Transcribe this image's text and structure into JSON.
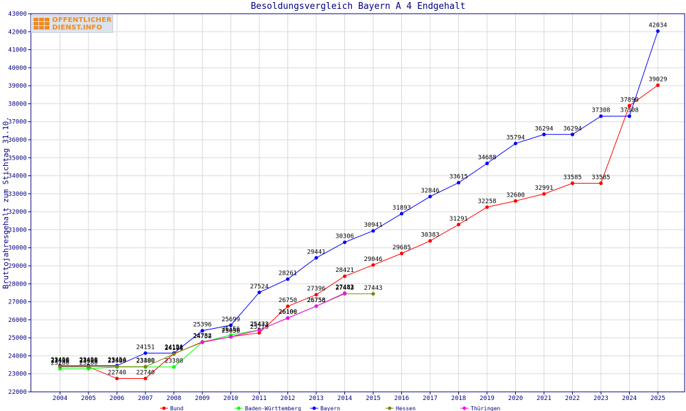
{
  "logo": {
    "line1": "OFFENTLICHER",
    "line2": "DIENST.INFO"
  },
  "colors": {
    "axis": "#000080",
    "grid": "#d9d9d9",
    "background": "#ffffff"
  },
  "chart_data": {
    "type": "line",
    "title": "Besoldungsvergleich Bayern A 4 Endgehalt",
    "xlabel": "",
    "ylabel": "Bruttojahresgehalt zum Stichtag 31.10.",
    "ylim": [
      22000,
      43000
    ],
    "yticks": [
      22000,
      23000,
      24000,
      25000,
      26000,
      27000,
      28000,
      29000,
      30000,
      31000,
      32000,
      33000,
      34000,
      35000,
      36000,
      37000,
      38000,
      39000,
      40000,
      41000,
      42000,
      43000
    ],
    "x": [
      2004,
      2005,
      2006,
      2007,
      2008,
      2009,
      2010,
      2011,
      2012,
      2013,
      2014,
      2015,
      2016,
      2017,
      2018,
      2019,
      2020,
      2021,
      2022,
      2023,
      2024,
      2025
    ],
    "grid": true,
    "legend_position": "bottom",
    "series": [
      {
        "name": "Bund",
        "color": "#ff0000",
        "values": [
          23386,
          23386,
          22740,
          22740,
          24126,
          24752,
          25056,
          25279,
          26750,
          27396,
          28421,
          29046,
          29685,
          30383,
          31291,
          32258,
          32600,
          32991,
          33585,
          33585,
          37890,
          39029
        ]
      },
      {
        "name": "Baden-Württemberg",
        "color": "#00ff00",
        "values": [
          23280,
          23280,
          23380,
          23380,
          23380,
          24752,
          25156,
          25433,
          26100,
          26758,
          27483,
          null,
          null,
          null,
          null,
          null,
          null,
          null,
          null,
          null,
          null,
          null
        ]
      },
      {
        "name": "Bayern",
        "color": "#0000ff",
        "values": [
          23450,
          23450,
          23454,
          24151,
          24151,
          25396,
          25699,
          27524,
          28261,
          29441,
          30306,
          30941,
          31893,
          32846,
          33615,
          34688,
          35794,
          36294,
          36294,
          37308,
          37308,
          42034
        ]
      },
      {
        "name": "Hessen",
        "color": "#808000",
        "values": [
          23400,
          23400,
          23400,
          23400,
          24100,
          24784,
          25056,
          25433,
          26100,
          26758,
          27443,
          27443,
          null,
          null,
          null,
          null,
          null,
          null,
          null,
          null,
          null,
          null
        ]
      },
      {
        "name": "Thüringen",
        "color": "#ff00ff",
        "values": [
          null,
          null,
          null,
          null,
          null,
          24752,
          25056,
          25433,
          26100,
          26758,
          27482,
          null,
          null,
          null,
          null,
          null,
          null,
          null,
          null,
          null,
          null,
          null
        ]
      }
    ]
  }
}
